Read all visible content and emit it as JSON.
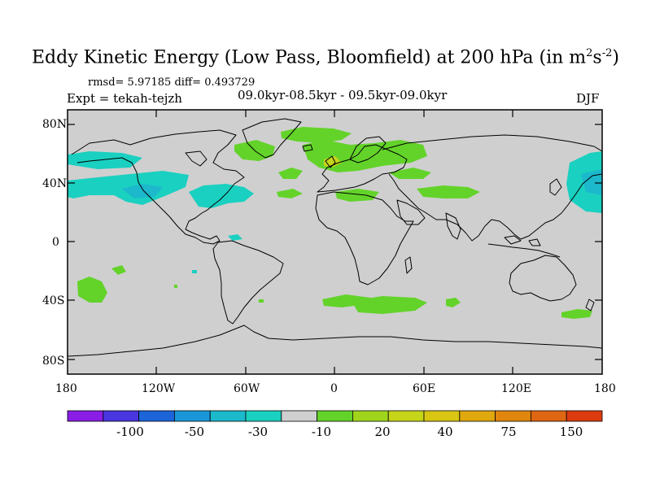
{
  "title": {
    "main": "Eddy Kinetic Energy (Low Pass, Bloomfield) at 200 hPa (in m",
    "sup1": "2",
    "mid": "s",
    "sup2": "-2",
    "end": ")"
  },
  "stats": "rmsd= 5.97185 diff= 0.493729",
  "expt": "Expt = tekah-tejzh",
  "period": "09.0kyr-08.5kyr - 09.5kyr-09.0kyr",
  "season": "DJF",
  "lat_ticks": [
    "80N",
    "40N",
    "0",
    "40S",
    "80S"
  ],
  "lon_ticks": [
    "180",
    "120W",
    "60W",
    "0",
    "60E",
    "120E",
    "180"
  ],
  "colorbar": {
    "colors": [
      "#8a1ee6",
      "#4a36e0",
      "#1c64d8",
      "#1b97d9",
      "#1cb8cc",
      "#1ad0c0",
      "#cfcfcf",
      "#63d32a",
      "#9fd41d",
      "#c5d51a",
      "#d8c613",
      "#e0a80f",
      "#e0860e",
      "#df6612",
      "#dc3c10"
    ],
    "labels": [
      "-100",
      "-50",
      "-30",
      "-10",
      "20",
      "40",
      "75",
      "150"
    ]
  },
  "colors": {
    "land_bg": "#cfcfcf",
    "green": "#63d32a",
    "cyan": "#1ad0c0",
    "blue": "#1cb8cc",
    "yellow": "#c5d51a"
  }
}
